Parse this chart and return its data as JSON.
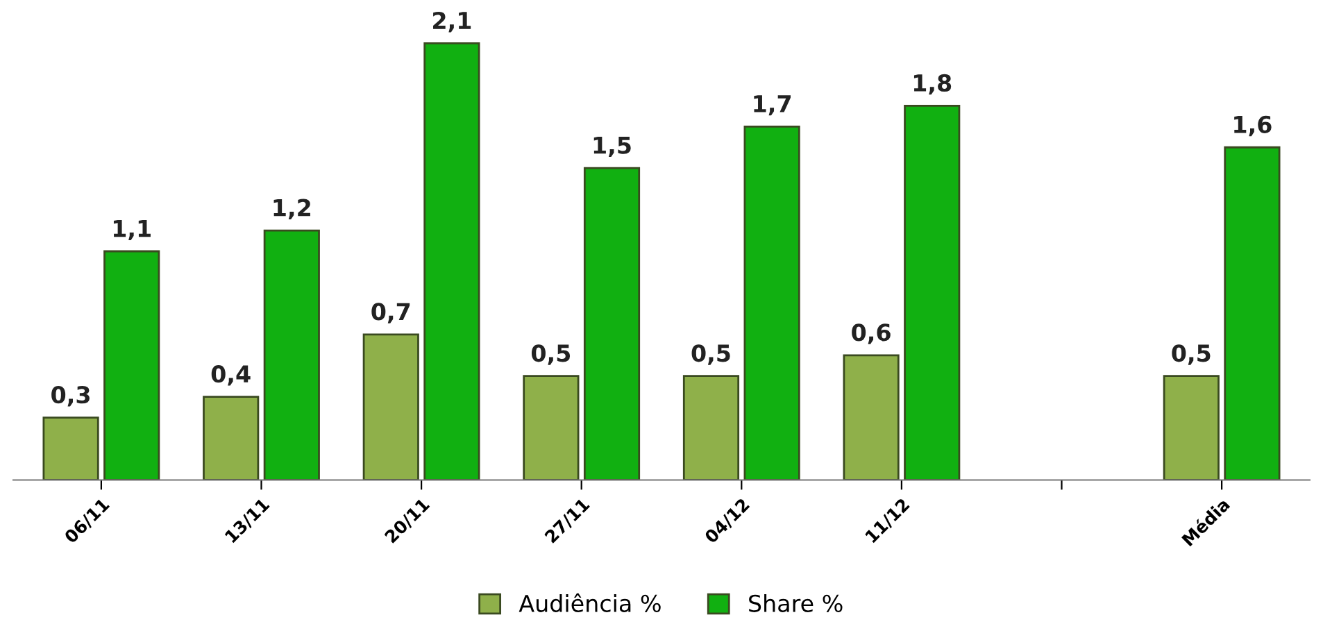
{
  "chart_data": {
    "type": "bar",
    "categories": [
      "06/11",
      "13/11",
      "20/11",
      "27/11",
      "04/12",
      "11/12",
      null,
      "Média"
    ],
    "series": [
      {
        "name": "Audiência %",
        "color": "#8fb04a",
        "values": [
          0.3,
          0.4,
          0.7,
          0.5,
          0.5,
          0.6,
          null,
          0.5
        ],
        "value_labels": [
          "0,3",
          "0,4",
          "0,7",
          "0,5",
          "0,5",
          "0,6",
          null,
          "0,5"
        ]
      },
      {
        "name": "Share %",
        "color": "#11b011",
        "values": [
          1.1,
          1.2,
          2.1,
          1.5,
          1.7,
          1.8,
          null,
          1.6
        ],
        "value_labels": [
          "1,1",
          "1,2",
          "2,1",
          "1,5",
          "1,7",
          "1,8",
          null,
          "1,6"
        ]
      }
    ],
    "legend": "bottom",
    "grid": false
  }
}
